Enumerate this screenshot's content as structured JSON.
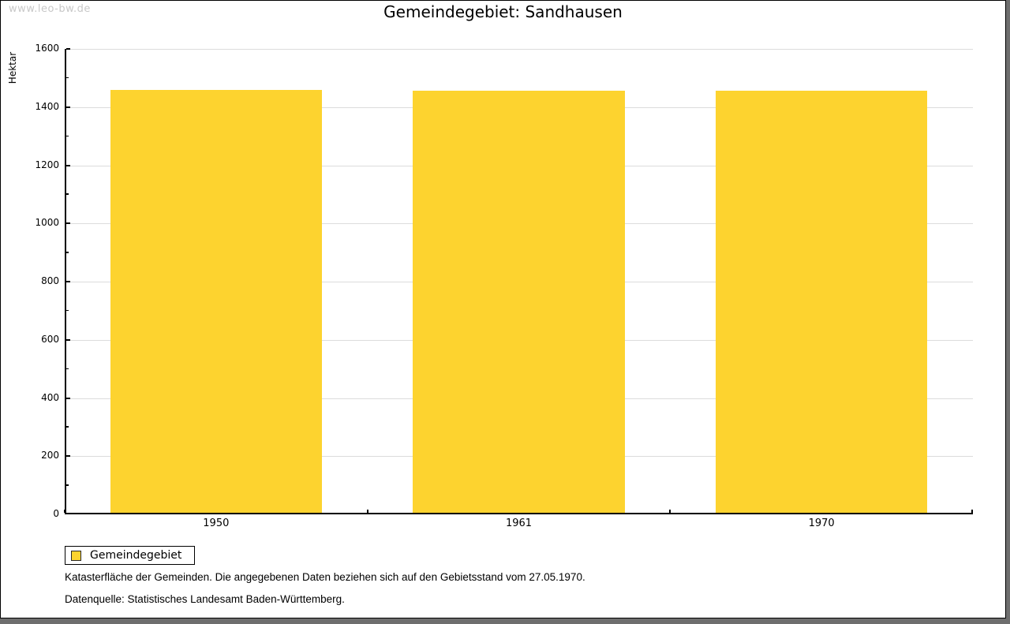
{
  "watermark": "www.leo-bw.de",
  "chart_data": {
    "type": "bar",
    "title": "Gemeindegebiet: Sandhausen",
    "categories": [
      "1950",
      "1961",
      "1970"
    ],
    "values": [
      1460,
      1457,
      1456
    ],
    "series": [
      {
        "name": "Gemeindegebiet",
        "values": [
          1460,
          1457,
          1456
        ]
      }
    ],
    "xlabel": "",
    "ylabel": "Hektar",
    "ylim": [
      0,
      1600
    ],
    "ytick_major": 200,
    "ytick_minor": 100,
    "grid": "horizontal-major",
    "legend_position": "bottom-left",
    "bar_color": "#fdd32f"
  },
  "legend": {
    "items": [
      {
        "label": "Gemeindegebiet",
        "color": "#fdd32f"
      }
    ]
  },
  "footer": {
    "line1": "Katasterfläche der Gemeinden. Die angegebenen Daten beziehen sich auf den Gebietsstand vom 27.05.1970.",
    "line2": "Datenquelle: Statistisches Landesamt Baden-Württemberg."
  },
  "colors": {
    "bar": "#fdd32f",
    "grid": "#dcdcdc",
    "axis": "#000000",
    "watermark": "#c8c8c8",
    "shadow": "#6e6e6e",
    "background": "#ffffff"
  }
}
